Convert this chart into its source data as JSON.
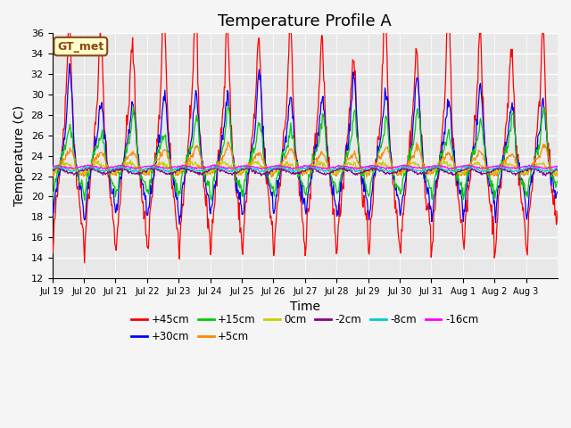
{
  "title": "Temperature Profile A",
  "xlabel": "Time",
  "ylabel": "Temperature (C)",
  "ylim": [
    12,
    36
  ],
  "series_labels": [
    "+45cm",
    "+30cm",
    "+15cm",
    "+5cm",
    "0cm",
    "-2cm",
    "-8cm",
    "-16cm"
  ],
  "series_colors": [
    "#ff0000",
    "#0000ff",
    "#00cc00",
    "#ff8800",
    "#cccc00",
    "#880088",
    "#00cccc",
    "#ff00ff"
  ],
  "gt_met_label": "GT_met",
  "x_tick_labels": [
    "Jul 19",
    "Jul 20",
    "Jul 21",
    "Jul 22",
    "Jul 23",
    "Jul 24",
    "Jul 25",
    "Jul 26",
    "Jul 27",
    "Jul 28",
    "Jul 29",
    "Jul 30",
    "Jul 31",
    "Aug 1",
    "Aug 2",
    "Aug 3"
  ],
  "background_color": "#e8e8e8",
  "fig_background": "#f5f5f5",
  "title_fontsize": 13,
  "axis_label_fontsize": 10,
  "tick_fontsize": 8
}
